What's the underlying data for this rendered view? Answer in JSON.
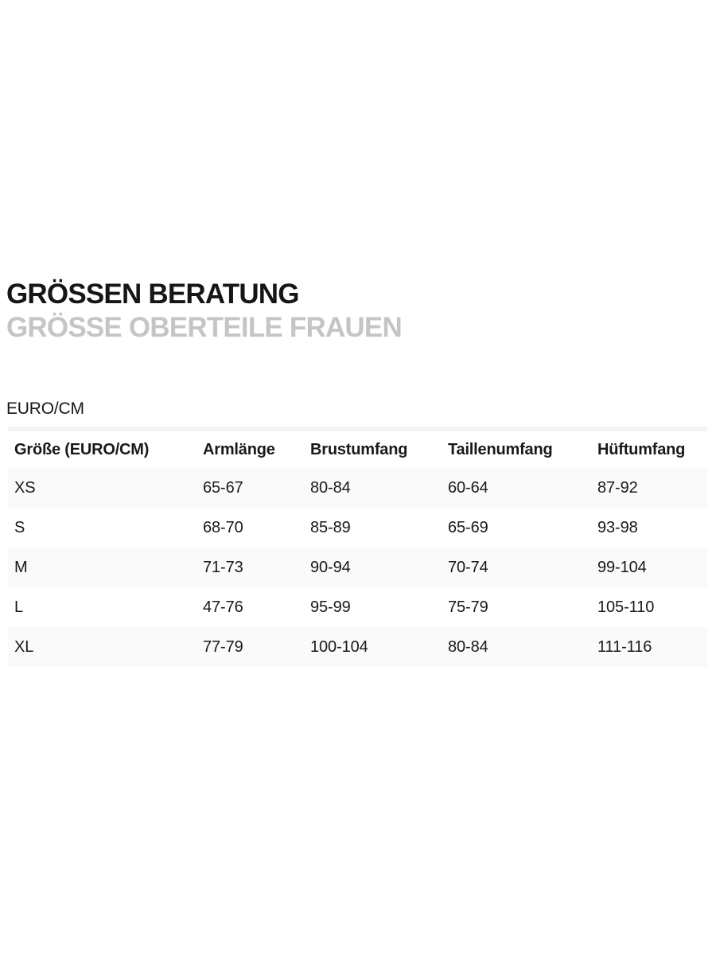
{
  "header": {
    "title": "GRÖSSEN BERATUNG",
    "subtitle": "GRÖSSE OBERTEILE FRAUEN"
  },
  "size_guide": {
    "unit_label": "EURO/CM",
    "columns": [
      "Größe (EURO/CM)",
      "Armlänge",
      "Brustumfang",
      "Taillenumfang",
      "Hüftumfang"
    ],
    "rows": [
      {
        "size": "XS",
        "armlaenge": "65-67",
        "brustumfang": "80-84",
        "taillenumfang": "60-64",
        "hueftumfang": "87-92"
      },
      {
        "size": "S",
        "armlaenge": "68-70",
        "brustumfang": "85-89",
        "taillenumfang": "65-69",
        "hueftumfang": "93-98"
      },
      {
        "size": "M",
        "armlaenge": "71-73",
        "brustumfang": "90-94",
        "taillenumfang": "70-74",
        "hueftumfang": "99-104"
      },
      {
        "size": "L",
        "armlaenge": "47-76",
        "brustumfang": "95-99",
        "taillenumfang": "75-79",
        "hueftumfang": "105-110"
      },
      {
        "size": "XL",
        "armlaenge": "77-79",
        "brustumfang": "100-104",
        "taillenumfang": "80-84",
        "hueftumfang": "111-116"
      }
    ]
  },
  "colors": {
    "title_text": "#161616",
    "subtitle_text": "#c5c5c5",
    "body_text": "#191919",
    "row_stripe_bg": "#fafafa",
    "table_top_rule": "#f4f4f4",
    "page_bg": "#ffffff"
  }
}
